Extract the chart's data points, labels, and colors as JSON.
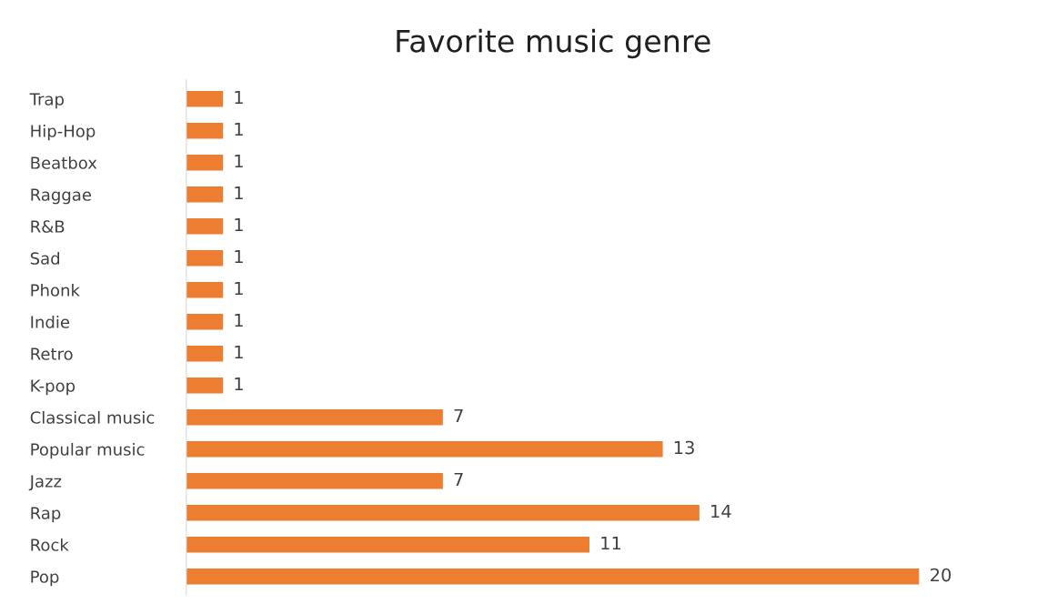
{
  "chart_data": {
    "type": "bar",
    "orientation": "horizontal",
    "title": "Favorite music genre",
    "categories": [
      "Trap",
      "Hip-Hop",
      "Beatbox",
      "Raggae",
      "R&B",
      "Sad",
      "Phonk",
      "Indie",
      "Retro",
      "K-pop",
      "Classical music",
      "Popular music",
      "Jazz",
      "Rap",
      "Rock",
      "Pop"
    ],
    "values": [
      1,
      1,
      1,
      1,
      1,
      1,
      1,
      1,
      1,
      1,
      7,
      13,
      7,
      14,
      11,
      20
    ],
    "color": "#ed7d31",
    "data_labels": true,
    "grid": false,
    "legend": false
  }
}
